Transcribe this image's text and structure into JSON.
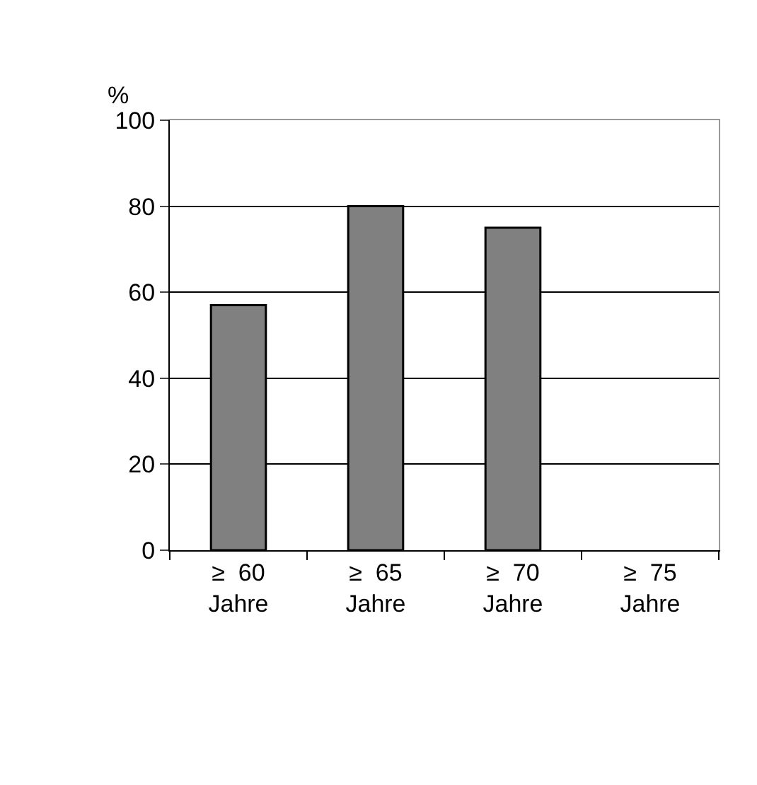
{
  "chart_data": {
    "type": "bar",
    "ylabel": "%",
    "categories": [
      "≥  60\nJahre",
      "≥  65\nJahre",
      "≥  70\nJahre",
      "≥  75\nJahre"
    ],
    "values": [
      57,
      80,
      75,
      0
    ],
    "color": "#808080",
    "ylim": [
      0,
      100
    ],
    "yticks": [
      0,
      20,
      40,
      60,
      80,
      100
    ],
    "grid": "y"
  }
}
